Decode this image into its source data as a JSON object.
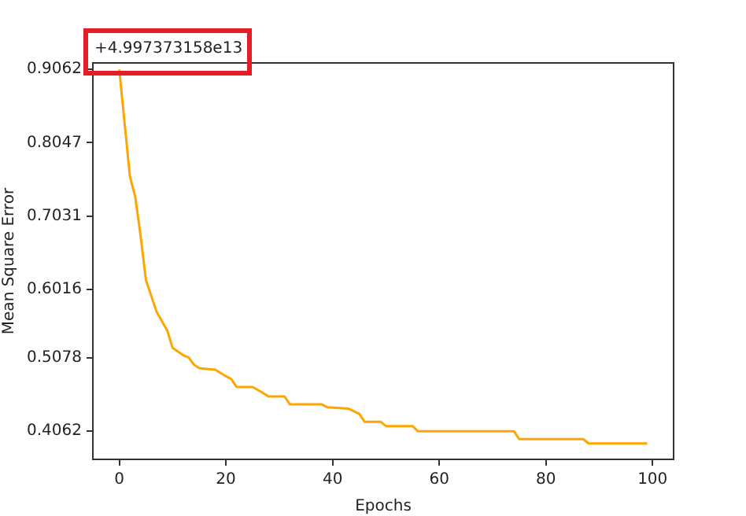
{
  "chart_data": {
    "type": "line",
    "xlabel": "Epochs",
    "ylabel": "Mean Square Error",
    "annotations": [
      "+4.997373158e13"
    ],
    "x": [
      0,
      1,
      2,
      3,
      4,
      5,
      7,
      9,
      10,
      12,
      13,
      14,
      15,
      18,
      20,
      21,
      22,
      25,
      26,
      28,
      31,
      32,
      38,
      39,
      43,
      45,
      46,
      49,
      50,
      55,
      56,
      74,
      75,
      87,
      88,
      99
    ],
    "series": [
      {
        "color": "#ffa500",
        "values": [
          0.906,
          0.832,
          0.758,
          0.73,
          0.676,
          0.615,
          0.571,
          0.545,
          0.521,
          0.511,
          0.508,
          0.498,
          0.493,
          0.491,
          0.482,
          0.478,
          0.467,
          0.467,
          0.463,
          0.454,
          0.454,
          0.443,
          0.443,
          0.439,
          0.437,
          0.43,
          0.419,
          0.419,
          0.413,
          0.413,
          0.406,
          0.406,
          0.395,
          0.395,
          0.389,
          0.389
        ]
      }
    ],
    "xlim": [
      -4.95,
      103.95
    ],
    "xticks": [
      0,
      20,
      40,
      60,
      80,
      100
    ],
    "ylim": [
      0.367,
      0.915
    ],
    "yticks": [
      0.4062,
      0.5078,
      0.6016,
      0.7031,
      0.8047,
      0.9062
    ],
    "grid": false,
    "legend": false,
    "marker": "none",
    "line_style": "solid"
  }
}
